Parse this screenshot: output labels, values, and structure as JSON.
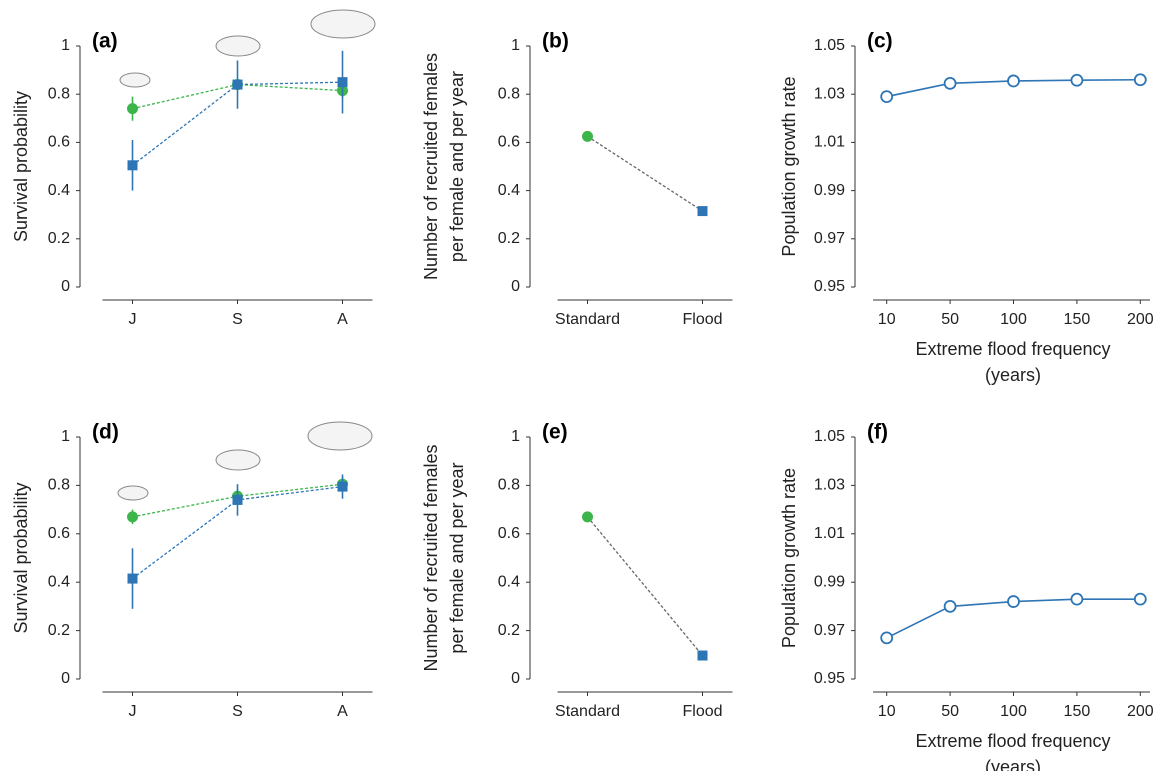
{
  "chart_data": [
    {
      "type": "line",
      "panel": "(a)",
      "ylabel": [
        "Survival probability"
      ],
      "categories": [
        "J",
        "S",
        "A"
      ],
      "ylim": [
        0,
        1
      ],
      "yticks": [
        0,
        0.2,
        0.4,
        0.6,
        0.8,
        1
      ],
      "series": [
        {
          "color": "#3cb54a",
          "marker": "circle",
          "values": [
            0.74,
            0.84,
            0.815
          ],
          "errors": [
            0.05,
            0.02,
            0.03
          ]
        },
        {
          "color": "#2e75b6",
          "marker": "square",
          "values": [
            0.505,
            0.84,
            0.85
          ],
          "errors": [
            0.105,
            0.1,
            0.13
          ]
        }
      ]
    },
    {
      "type": "line",
      "panel": "(b)",
      "ylabel": [
        "Number of recruited females",
        "per female and per year"
      ],
      "categories": [
        "Standard",
        "Flood"
      ],
      "ylim": [
        0,
        1
      ],
      "yticks": [
        0,
        0.2,
        0.4,
        0.6,
        0.8,
        1
      ],
      "series": [
        {
          "color": "#666666",
          "point_colors": [
            "#3cb54a",
            "#2e75b6"
          ],
          "markers": [
            "circle",
            "square"
          ],
          "values": [
            0.625,
            0.315
          ]
        }
      ]
    },
    {
      "type": "line",
      "panel": "(c)",
      "ylabel": [
        "Population growth rate"
      ],
      "xlabel": [
        "Extreme flood frequency",
        "(years)"
      ],
      "categories": [
        10,
        50,
        100,
        150,
        200
      ],
      "ylim": [
        0.95,
        1.05
      ],
      "yticks": [
        0.95,
        0.97,
        0.99,
        1.01,
        1.03,
        1.05
      ],
      "series": [
        {
          "color": "#2e75b6",
          "marker": "open-circle",
          "values": [
            1.029,
            1.0345,
            1.0355,
            1.0358,
            1.036
          ]
        }
      ]
    },
    {
      "type": "line",
      "panel": "(d)",
      "ylabel": [
        "Survival probability"
      ],
      "categories": [
        "J",
        "S",
        "A"
      ],
      "ylim": [
        0,
        1
      ],
      "yticks": [
        0,
        0.2,
        0.4,
        0.6,
        0.8,
        1
      ],
      "series": [
        {
          "color": "#3cb54a",
          "marker": "circle",
          "values": [
            0.67,
            0.755,
            0.805
          ],
          "errors": [
            0.03,
            0.03,
            0.03
          ]
        },
        {
          "color": "#2e75b6",
          "marker": "square",
          "values": [
            0.415,
            0.74,
            0.795
          ],
          "errors": [
            0.125,
            0.065,
            0.05
          ]
        }
      ]
    },
    {
      "type": "line",
      "panel": "(e)",
      "ylabel": [
        "Number of recruited females",
        "per female and per year"
      ],
      "categories": [
        "Standard",
        "Flood"
      ],
      "ylim": [
        0,
        1
      ],
      "yticks": [
        0,
        0.2,
        0.4,
        0.6,
        0.8,
        1
      ],
      "series": [
        {
          "color": "#666666",
          "point_colors": [
            "#3cb54a",
            "#2e75b6"
          ],
          "markers": [
            "circle",
            "square"
          ],
          "values": [
            0.67,
            0.097
          ]
        }
      ]
    },
    {
      "type": "line",
      "panel": "(f)",
      "ylabel": [
        "Population growth rate"
      ],
      "xlabel": [
        "Extreme flood frequency",
        "(years)"
      ],
      "categories": [
        10,
        50,
        100,
        150,
        200
      ],
      "ylim": [
        0.95,
        1.05
      ],
      "yticks": [
        0.95,
        0.97,
        0.99,
        1.01,
        1.03,
        1.05
      ],
      "series": [
        {
          "color": "#2e75b6",
          "marker": "open-circle",
          "values": [
            0.967,
            0.98,
            0.982,
            0.983,
            0.983
          ]
        }
      ]
    }
  ]
}
